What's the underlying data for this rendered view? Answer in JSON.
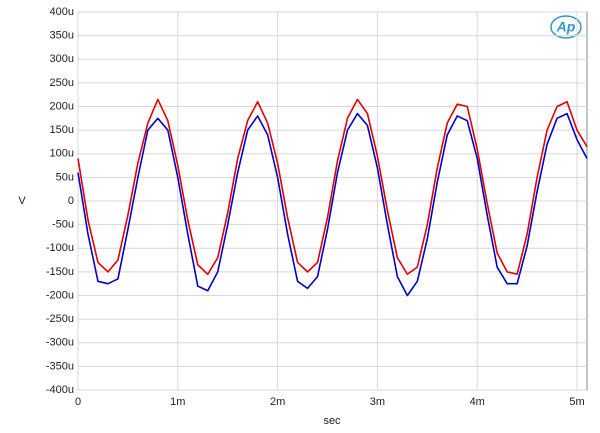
{
  "chart_data": {
    "type": "line",
    "xlabel": "sec",
    "ylabel": "V",
    "logo": "Ap",
    "x": [
      0,
      0.0001,
      0.0002,
      0.0003,
      0.0004,
      0.0005,
      0.0006,
      0.0007,
      0.0008,
      0.0009,
      0.001,
      0.0011,
      0.0012,
      0.0013,
      0.0014,
      0.0015,
      0.0016,
      0.0017,
      0.0018,
      0.0019,
      0.002,
      0.0021,
      0.0022,
      0.0023,
      0.0024,
      0.0025,
      0.0026,
      0.0027,
      0.0028,
      0.0029,
      0.003,
      0.0031,
      0.0032,
      0.0033,
      0.0034,
      0.0035,
      0.0036,
      0.0037,
      0.0038,
      0.0039,
      0.004,
      0.0041,
      0.0042,
      0.0043,
      0.0044,
      0.0045,
      0.0046,
      0.0047,
      0.0048,
      0.0049,
      0.005,
      0.0051
    ],
    "series": [
      {
        "name": "Red",
        "color": "#e00000",
        "values": [
          9e-05,
          -4e-05,
          -0.00013,
          -0.00015,
          -0.000125,
          -3e-05,
          8e-05,
          0.000165,
          0.000215,
          0.00017,
          7.5e-05,
          -4e-05,
          -0.000135,
          -0.000155,
          -0.00012,
          -2.5e-05,
          9e-05,
          0.00017,
          0.00021,
          0.000165,
          8e-05,
          -3.5e-05,
          -0.00013,
          -0.00015,
          -0.00013,
          -3.5e-05,
          8.5e-05,
          0.000175,
          0.000215,
          0.000185,
          9.5e-05,
          -2e-05,
          -0.00012,
          -0.000155,
          -0.00014,
          -5e-05,
          7e-05,
          0.000165,
          0.000205,
          0.0002,
          0.00011,
          -5e-06,
          -0.00011,
          -0.00015,
          -0.000155,
          -7e-05,
          5e-05,
          0.00015,
          0.0002,
          0.00021,
          0.00015,
          0.000115
        ]
      },
      {
        "name": "Blue",
        "color": "#0000cc",
        "values": [
          6e-05,
          -7e-05,
          -0.00017,
          -0.000175,
          -0.000165,
          -6e-05,
          5e-05,
          0.00015,
          0.000175,
          0.00015,
          5e-05,
          -7e-05,
          -0.00018,
          -0.00019,
          -0.00015,
          -5e-05,
          6e-05,
          0.00015,
          0.00018,
          0.00014,
          5e-05,
          -7e-05,
          -0.00017,
          -0.000185,
          -0.00016,
          -6e-05,
          6e-05,
          0.00015,
          0.000185,
          0.00016,
          7e-05,
          -5e-05,
          -0.00016,
          -0.0002,
          -0.00017,
          -8e-05,
          4e-05,
          0.00014,
          0.00018,
          0.00017,
          9e-05,
          -3e-05,
          -0.00014,
          -0.000175,
          -0.000175,
          -9.5e-05,
          2e-05,
          0.00012,
          0.000175,
          0.000185,
          0.00013,
          9e-05
        ]
      }
    ],
    "xlim": [
      0,
      0.0051
    ],
    "xticks": [
      0,
      {
        "value": 0.001,
        "label": "1m"
      },
      {
        "value": 0.002,
        "label": "2m"
      },
      {
        "value": 0.003,
        "label": "3m"
      },
      {
        "value": 0.004,
        "label": "4m"
      },
      {
        "value": 0.005,
        "label": "5m"
      }
    ],
    "ylim": [
      -0.0004,
      0.0004
    ],
    "yticks": [
      {
        "value": 0.0004,
        "label": "400u"
      },
      {
        "value": 0.00035,
        "label": "350u"
      },
      {
        "value": 0.0003,
        "label": "300u"
      },
      {
        "value": 0.00025,
        "label": "250u"
      },
      {
        "value": 0.0002,
        "label": "200u"
      },
      {
        "value": 0.00015,
        "label": "150u"
      },
      {
        "value": 0.0001,
        "label": "100u"
      },
      {
        "value": 5e-05,
        "label": "50u"
      },
      0,
      {
        "value": -5e-05,
        "label": "-50u"
      },
      {
        "value": -0.0001,
        "label": "-100u"
      },
      {
        "value": -0.00015,
        "label": "-150u"
      },
      {
        "value": -0.0002,
        "label": "-200u"
      },
      {
        "value": -0.00025,
        "label": "-250u"
      },
      {
        "value": -0.0003,
        "label": "-300u"
      },
      {
        "value": -0.00035,
        "label": "-350u"
      },
      {
        "value": -0.0004,
        "label": "-400u"
      }
    ],
    "grid": true
  }
}
